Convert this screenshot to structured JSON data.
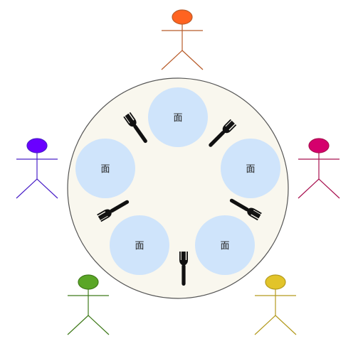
{
  "table": {
    "fill": "#f9f7ee",
    "stroke": "#555555"
  },
  "plates": [
    {
      "label": "面",
      "color": "#cfe4fb"
    },
    {
      "label": "面",
      "color": "#cfe4fb"
    },
    {
      "label": "面",
      "color": "#cfe4fb"
    },
    {
      "label": "面",
      "color": "#cfe4fb"
    },
    {
      "label": "面",
      "color": "#cfe4fb"
    }
  ],
  "forks": {
    "count": 5,
    "color": "#111111",
    "icon": "fork-icon"
  },
  "philosophers": [
    {
      "color": "#ff6320",
      "stroke": "#b85c2a"
    },
    {
      "color": "#d5006d",
      "stroke": "#a8104f"
    },
    {
      "color": "#e2c42a",
      "stroke": "#b39a1e"
    },
    {
      "color": "#5aa626",
      "stroke": "#3f7a1a"
    },
    {
      "color": "#6a00ff",
      "stroke": "#4a20c8"
    }
  ]
}
